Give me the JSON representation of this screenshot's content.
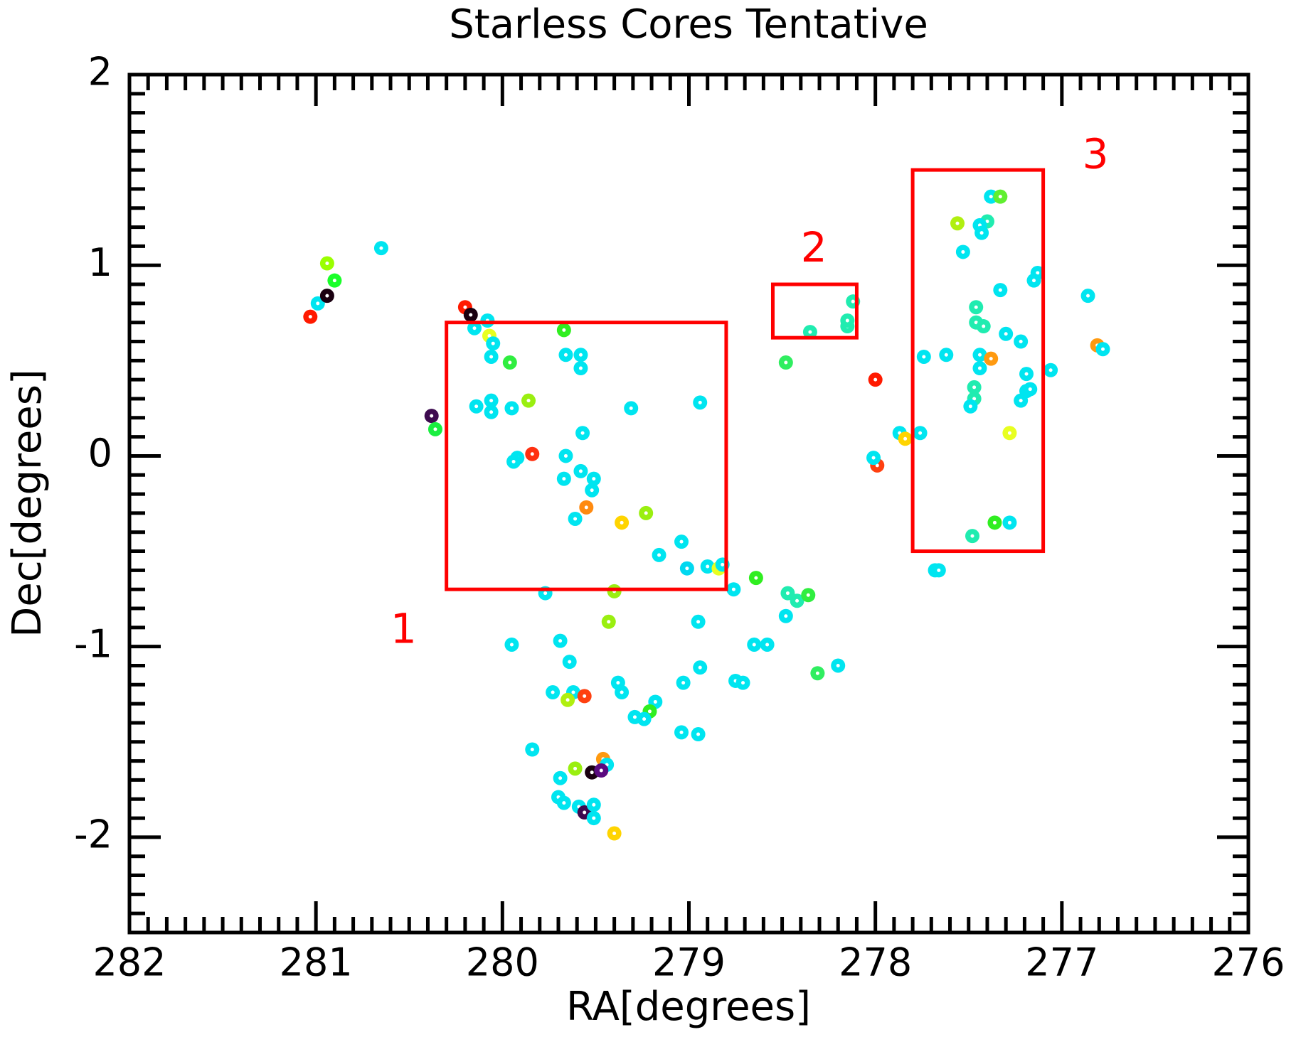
{
  "chart_data": {
    "type": "scatter",
    "title": "Starless Cores Tentative",
    "x_label": "RA[degrees]",
    "y_label": "Dec[degrees]",
    "xlim": [
      282,
      276
    ],
    "ylim": [
      -2.5,
      2
    ],
    "xticks": [
      282,
      281,
      280,
      279,
      278,
      277,
      276
    ],
    "yticks": [
      2,
      1,
      0,
      -1,
      -2
    ],
    "minor_divisions": 10,
    "x": [
      281.03,
      280.99,
      280.94,
      280.94,
      280.9,
      280.65,
      280.2,
      280.17,
      280.08,
      280.15,
      280.07,
      280.05,
      280.06,
      279.96,
      279.67,
      279.66,
      279.58,
      279.58,
      280.14,
      280.06,
      280.06,
      279.95,
      279.86,
      280.38,
      280.36,
      279.57,
      279.31,
      278.94,
      279.84,
      279.92,
      279.94,
      279.66,
      279.58,
      279.51,
      279.67,
      279.52,
      279.55,
      279.61,
      279.36,
      279.23,
      279.16,
      279.04,
      279.01,
      278.9,
      278.84,
      278.82,
      278.76,
      278.64,
      279.77,
      279.4,
      279.43,
      278.47,
      278.42,
      278.36,
      278.48,
      278.95,
      279.95,
      279.69,
      279.64,
      278.65,
      278.58,
      278.31,
      278.2,
      278.94,
      279.03,
      279.38,
      279.36,
      279.73,
      279.62,
      279.65,
      279.56,
      279.18,
      279.21,
      279.29,
      279.24,
      278.75,
      278.71,
      279.04,
      278.95,
      279.84,
      279.46,
      279.44,
      279.61,
      279.52,
      279.47,
      279.69,
      279.7,
      279.67,
      279.59,
      279.56,
      279.51,
      279.51,
      279.4,
      278.48,
      278.35,
      278.15,
      278.15,
      278.12,
      278.0,
      277.99,
      278.01,
      277.87,
      277.84,
      277.76,
      277.74,
      277.62,
      277.68,
      277.66,
      277.56,
      277.38,
      277.33,
      277.4,
      277.44,
      277.43,
      277.53,
      277.33,
      277.13,
      277.15,
      277.46,
      277.46,
      277.42,
      277.3,
      277.22,
      277.44,
      277.38,
      277.44,
      277.19,
      277.06,
      277.47,
      277.19,
      277.17,
      277.47,
      277.49,
      277.22,
      277.28,
      277.48,
      277.36,
      277.28,
      276.86,
      276.81,
      276.78
    ],
    "values": [
      0.73,
      0.8,
      0.84,
      1.01,
      0.92,
      1.09,
      0.78,
      0.74,
      0.71,
      0.67,
      0.63,
      0.59,
      0.52,
      0.49,
      0.66,
      0.53,
      0.53,
      0.46,
      0.26,
      0.29,
      0.23,
      0.25,
      0.29,
      0.21,
      0.14,
      0.12,
      0.25,
      0.28,
      0.01,
      -0.01,
      -0.03,
      0.0,
      -0.08,
      -0.12,
      -0.12,
      -0.18,
      -0.27,
      -0.33,
      -0.35,
      -0.3,
      -0.52,
      -0.45,
      -0.59,
      -0.58,
      -0.59,
      -0.57,
      -0.7,
      -0.64,
      -0.72,
      -0.71,
      -0.87,
      -0.72,
      -0.76,
      -0.73,
      -0.84,
      -0.87,
      -0.99,
      -0.97,
      -1.08,
      -0.99,
      -0.99,
      -1.14,
      -1.1,
      -1.11,
      -1.19,
      -1.19,
      -1.24,
      -1.24,
      -1.24,
      -1.28,
      -1.26,
      -1.29,
      -1.34,
      -1.37,
      -1.38,
      -1.18,
      -1.19,
      -1.45,
      -1.46,
      -1.54,
      -1.59,
      -1.62,
      -1.64,
      -1.66,
      -1.65,
      -1.69,
      -1.79,
      -1.82,
      -1.84,
      -1.87,
      -1.9,
      -1.83,
      -1.98,
      0.49,
      0.65,
      0.68,
      0.71,
      0.81,
      0.4,
      -0.05,
      -0.01,
      0.12,
      0.09,
      0.12,
      0.52,
      0.53,
      -0.6,
      -0.6,
      1.22,
      1.36,
      1.36,
      1.23,
      1.21,
      1.17,
      1.07,
      0.87,
      0.96,
      0.92,
      0.78,
      0.7,
      0.68,
      0.64,
      0.6,
      0.53,
      0.51,
      0.46,
      0.43,
      0.45,
      0.36,
      0.34,
      0.35,
      0.3,
      0.26,
      0.29,
      0.12,
      -0.42,
      -0.35,
      -0.35,
      0.84,
      0.58,
      0.56
    ],
    "colors": [
      "#ff1a00",
      "#00e5f0",
      "#1a0010",
      "#9aff00",
      "#1aff2a",
      "#00e5f0",
      "#ff1a00",
      "#1a0010",
      "#00e5f0",
      "#00e5f0",
      "#e8ff20",
      "#00e5f0",
      "#00e5f0",
      "#30ee40",
      "#30ee20",
      "#00e5f0",
      "#00e5f0",
      "#00e5f0",
      "#00e5f0",
      "#00e5f0",
      "#00e5f0",
      "#00e5f0",
      "#9aef10",
      "#3d0a4f",
      "#1aee40",
      "#00e5f0",
      "#00e5f0",
      "#00e5f0",
      "#ff3010",
      "#00e5f0",
      "#00e5f0",
      "#00e5f0",
      "#00e5f0",
      "#00e5f0",
      "#00e5f0",
      "#00e5f0",
      "#ff8a10",
      "#00e5f0",
      "#ffd400",
      "#9aef10",
      "#00e5f0",
      "#00e5f0",
      "#00d8f0",
      "#00e5f0",
      "#e8ff20",
      "#00e5f0",
      "#00e5f0",
      "#30ee20",
      "#00e5f0",
      "#9aef10",
      "#9aef10",
      "#20ecb0",
      "#20ecb0",
      "#30ee40",
      "#00e5f0",
      "#00e5f0",
      "#00e5f0",
      "#00e5f0",
      "#00e5f0",
      "#00e5f0",
      "#00e5f0",
      "#30ee60",
      "#00e5f0",
      "#00e5f0",
      "#00e5f0",
      "#00e5f0",
      "#00e5f0",
      "#00e5f0",
      "#00e5f0",
      "#b0ef10",
      "#ff4010",
      "#00e5f0",
      "#30ee20",
      "#00e5f0",
      "#00e5f0",
      "#00e5f0",
      "#00e5f0",
      "#00e5f0",
      "#00e5f0",
      "#00e5f0",
      "#ff9a10",
      "#00e5f0",
      "#9aef10",
      "#1a0010",
      "#5a0a7f",
      "#00e5f0",
      "#00e5f0",
      "#00e5f0",
      "#00e5f0",
      "#3d0a4f",
      "#00e5f0",
      "#00e5f0",
      "#ffd400",
      "#30ee60",
      "#20ecb0",
      "#20ecb0",
      "#20ecb0",
      "#20ecb0",
      "#ff1a00",
      "#ff4010",
      "#00e5f0",
      "#00e5f0",
      "#ffd400",
      "#00e5f0",
      "#00e5f0",
      "#00e5f0",
      "#00e5f0",
      "#00e5f0",
      "#b0ef10",
      "#00e5f0",
      "#60ef30",
      "#20ecb0",
      "#00e5f0",
      "#00e5f0",
      "#00e5f0",
      "#00e5f0",
      "#00e5f0",
      "#00e5f0",
      "#20ecb0",
      "#20ecb0",
      "#20ecb0",
      "#00e5f0",
      "#00e5f0",
      "#00e5f0",
      "#ff9a10",
      "#00e5f0",
      "#00e5f0",
      "#00e5f0",
      "#20ecb0",
      "#00e5f0",
      "#00e5f0",
      "#20ecb0",
      "#00e5f0",
      "#00e5f0",
      "#e8ff20",
      "#20ecb0",
      "#30ee20",
      "#00e5f0",
      "#00e5f0",
      "#ff9a10",
      "#00e5f0"
    ],
    "regions": [
      {
        "x": [
          280.3,
          278.8
        ],
        "y": [
          -0.7,
          0.7
        ]
      },
      {
        "x": [
          278.55,
          278.1
        ],
        "y": [
          0.62,
          0.9
        ]
      },
      {
        "x": [
          277.8,
          277.1
        ],
        "y": [
          -0.5,
          1.5
        ]
      }
    ],
    "region_color": "#ff0000",
    "annotations": [
      {
        "text": "1",
        "x": 280.53,
        "y": -0.92
      },
      {
        "text": "2",
        "x": 278.33,
        "y": 1.08
      },
      {
        "text": "3",
        "x": 276.82,
        "y": 1.57
      }
    ]
  }
}
